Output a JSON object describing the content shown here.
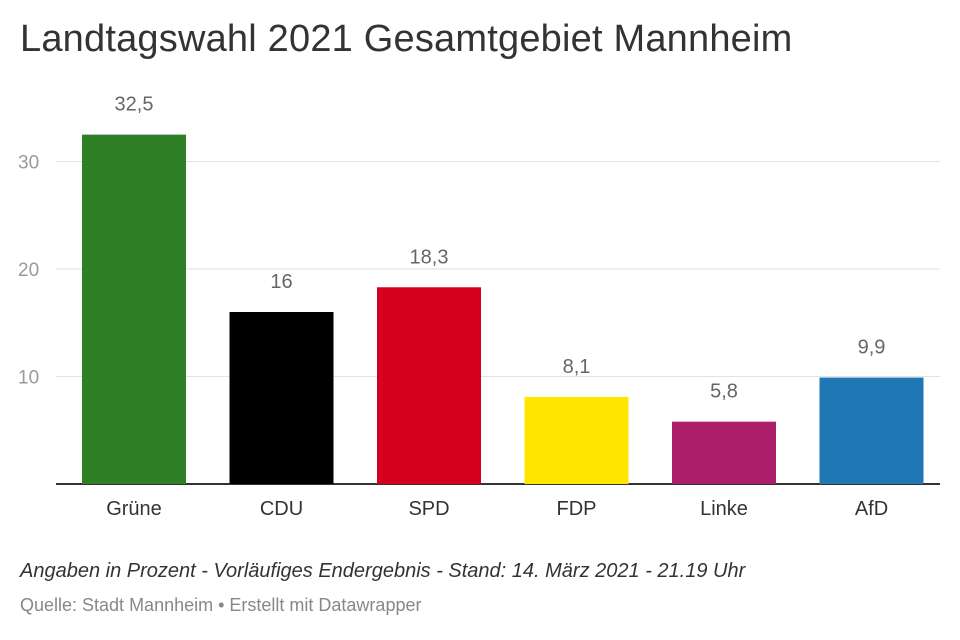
{
  "title": "Landtagswahl 2021 Gesamtgebiet Mannheim",
  "chart_data": {
    "type": "bar",
    "title": "Landtagswahl 2021 Gesamtgebiet Mannheim",
    "xlabel": "",
    "ylabel": "",
    "ylim": [
      0,
      35
    ],
    "y_ticks": [
      10,
      20,
      30
    ],
    "y_tick_labels": [
      "10",
      "20",
      "30"
    ],
    "grid": true,
    "categories": [
      "Grüne",
      "CDU",
      "SPD",
      "FDP",
      "Linke",
      "AfD"
    ],
    "values": [
      32.5,
      16,
      18.3,
      8.1,
      5.8,
      9.9
    ],
    "value_labels": [
      "32,5",
      "16",
      "18,3",
      "8,1",
      "5,8",
      "9,9"
    ],
    "colors": [
      "#2e7f25",
      "#000000",
      "#d5001e",
      "#ffe600",
      "#ab1f6a",
      "#1f77b4"
    ]
  },
  "note": "Angaben in Prozent - Vorläufiges Endergebnis - Stand: 14. März 2021 - 21.19 Uhr",
  "source": "Quelle: Stadt Mannheim • Erstellt mit Datawrapper"
}
